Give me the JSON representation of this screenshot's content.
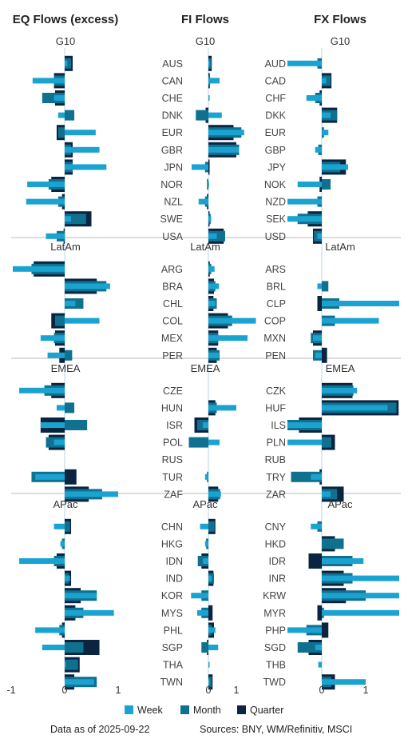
{
  "colors": {
    "week": "#1aa3d1",
    "month": "#10708f",
    "quarter": "#0b2540",
    "divider": "#b9b9b9",
    "axis": "#bcd6e6"
  },
  "legend": {
    "week": "Week",
    "month": "Month",
    "quarter": "Quarter"
  },
  "footer": {
    "date_note": "Data as of 2025-09-22",
    "sources": "Sources:  BNY, WM/Refinitiv, MSCI"
  },
  "chart_data": [
    {
      "type": "bar",
      "title": "EQ Flows (excess)",
      "xlim": [
        -1,
        1
      ],
      "xticks": [
        -1,
        0,
        1
      ],
      "series_names": [
        "Week",
        "Month",
        "Quarter"
      ],
      "groups": [
        {
          "name": "G10",
          "categories": [
            "AUS",
            "CAN",
            "CHE",
            "DNK",
            "EUR",
            "GBR",
            "JPN",
            "NOR",
            "NZL",
            "SWE",
            "USA"
          ],
          "week": [
            0.05,
            -0.6,
            -0.2,
            -0.12,
            0.58,
            0.65,
            0.78,
            -0.7,
            -0.72,
            0.12,
            -0.35
          ],
          "month": [
            0.12,
            -0.2,
            -0.42,
            0.18,
            -0.12,
            0.12,
            0.15,
            -0.3,
            -0.12,
            0.4,
            -0.15
          ],
          "quarter": [
            0.15,
            -0.2,
            -0.18,
            0.0,
            -0.15,
            0.15,
            0.15,
            -0.25,
            -0.05,
            0.5,
            -0.02
          ]
        },
        {
          "name": "LatAm",
          "categories": [
            "ARG",
            "BRA",
            "CHL",
            "COL",
            "MEX",
            "PER"
          ],
          "week": [
            -1.0,
            0.85,
            0.2,
            0.65,
            -0.45,
            -0.32
          ],
          "month": [
            -0.62,
            0.78,
            0.35,
            -0.18,
            -0.2,
            0.14
          ],
          "quarter": [
            -0.58,
            0.6,
            0.0,
            -0.25,
            -0.18,
            -0.1
          ]
        },
        {
          "name": "EMEA",
          "categories": [
            "CZE",
            "HUN",
            "ISR",
            "POL",
            "RUS",
            "TUR",
            "ZAF"
          ],
          "week": [
            -0.85,
            -0.15,
            -0.45,
            -0.2,
            0.0,
            -0.55,
            1.0
          ],
          "month": [
            -0.38,
            0.18,
            0.42,
            -0.35,
            0.0,
            -0.62,
            0.7
          ],
          "quarter": [
            -0.25,
            0.0,
            -0.45,
            -0.3,
            0.0,
            0.22,
            0.45
          ]
        },
        {
          "name": "APac",
          "categories": [
            "CHN",
            "HKG",
            "IDN",
            "IND",
            "KOR",
            "MYS",
            "PHL",
            "SGP",
            "THA",
            "TWN"
          ],
          "week": [
            -0.2,
            -0.08,
            -0.85,
            0.1,
            0.6,
            0.92,
            -0.55,
            -0.42,
            0.02,
            0.55
          ],
          "month": [
            0.1,
            -0.05,
            -0.2,
            0.08,
            0.6,
            0.35,
            -0.1,
            0.35,
            0.25,
            0.6
          ],
          "quarter": [
            0.12,
            0.0,
            -0.15,
            0.12,
            0.3,
            0.2,
            -0.05,
            0.65,
            0.28,
            0.18
          ]
        }
      ]
    },
    {
      "type": "bar",
      "title": "FI Flows",
      "xlim": [
        -1,
        1
      ],
      "xticks": [
        0,
        1
      ],
      "series_names": [
        "Week",
        "Month",
        "Quarter"
      ],
      "groups": [
        {
          "name": "G10",
          "categories": [
            "AUS",
            "CAN",
            "CHE",
            "DNK",
            "EUR",
            "GBR",
            "JPN",
            "NOR",
            "NZL",
            "SWE",
            "USA"
          ],
          "week": [
            0.05,
            0.4,
            0.02,
            0.48,
            1.28,
            1.1,
            -0.6,
            -0.02,
            -0.35,
            0.1,
            0.3
          ],
          "month": [
            0.12,
            0.06,
            0.0,
            -0.45,
            1.18,
            1.1,
            -0.12,
            -0.05,
            -0.12,
            0.08,
            0.6
          ],
          "quarter": [
            0.12,
            0.05,
            0.0,
            -0.1,
            0.9,
            1.0,
            0.02,
            0.0,
            -0.05,
            0.04,
            0.55
          ]
        },
        {
          "name": "LatAm",
          "categories": [
            "ARG",
            "BRA",
            "CHL",
            "COL",
            "MEX",
            "PER"
          ],
          "week": [
            0.22,
            0.38,
            0.25,
            1.7,
            1.4,
            0.38
          ],
          "month": [
            0.1,
            0.25,
            0.3,
            0.85,
            0.35,
            0.4
          ],
          "quarter": [
            0.05,
            0.2,
            0.18,
            0.7,
            0.35,
            0.3
          ]
        },
        {
          "name": "EMEA",
          "categories": [
            "CZE",
            "HUN",
            "ISR",
            "POL",
            "RUS",
            "TUR",
            "ZAF"
          ],
          "week": [
            0.0,
            1.0,
            -0.2,
            0.4,
            0.0,
            -0.12,
            0.45
          ],
          "month": [
            0.0,
            0.3,
            -0.4,
            -0.7,
            0.0,
            -0.05,
            0.42
          ],
          "quarter": [
            0.0,
            0.25,
            -0.5,
            0.0,
            0.0,
            0.0,
            0.35
          ]
        },
        {
          "name": "APac",
          "categories": [
            "CHN",
            "HKG",
            "IDN",
            "IND",
            "KOR",
            "MYS",
            "PHL",
            "SGP",
            "THA",
            "TWN"
          ],
          "week": [
            -0.3,
            -0.12,
            -0.2,
            0.12,
            -0.62,
            -0.4,
            0.25,
            0.35,
            0.04,
            0.05
          ],
          "month": [
            0.22,
            -0.08,
            -0.38,
            0.2,
            -0.25,
            -0.25,
            0.12,
            -0.25,
            0.0,
            0.12
          ],
          "quarter": [
            0.25,
            0.0,
            -0.25,
            0.18,
            0.0,
            0.15,
            0.2,
            -0.05,
            0.0,
            0.15
          ]
        }
      ]
    },
    {
      "type": "bar",
      "title": "FX Flows",
      "xlim": [
        -1,
        1
      ],
      "xticks": [
        0,
        1
      ],
      "series_names": [
        "Week",
        "Month",
        "Quarter"
      ],
      "groups": [
        {
          "name": "G10",
          "categories": [
            "AUD",
            "CAD",
            "CHF",
            "DKK",
            "EUR",
            "GBP",
            "JPY",
            "NOK",
            "NZD",
            "SEK",
            "USD"
          ],
          "week": [
            -1.15,
            0.1,
            -0.35,
            0.2,
            0.15,
            -0.15,
            0.6,
            -0.55,
            -0.82,
            -1.25,
            -0.1
          ],
          "month": [
            -0.1,
            0.2,
            -0.15,
            0.35,
            0.05,
            -0.08,
            0.42,
            0.2,
            -0.1,
            -0.55,
            -0.18
          ],
          "quarter": [
            0.0,
            0.22,
            -0.05,
            0.35,
            0.0,
            0.0,
            0.55,
            -0.05,
            0.0,
            -0.32,
            -0.2
          ]
        },
        {
          "name": "LatAm",
          "categories": [
            "ARS",
            "BRL",
            "CLP",
            "COP",
            "MXN",
            "PEN"
          ],
          "week": [
            0.0,
            -0.1,
            1.8,
            1.3,
            -0.2,
            -0.15
          ],
          "month": [
            0.0,
            0.15,
            0.4,
            0.3,
            -0.25,
            -0.2
          ],
          "quarter": [
            0.0,
            0.0,
            -0.1,
            0.0,
            -0.2,
            0.12
          ]
        },
        {
          "name": "EMEA",
          "categories": [
            "CZK",
            "HUF",
            "ILS",
            "PLN",
            "RUB",
            "TRY",
            "ZAR"
          ],
          "week": [
            0.8,
            1.5,
            -1.22,
            -0.78,
            0.0,
            -0.25,
            0.2
          ],
          "month": [
            0.72,
            1.7,
            -1.0,
            0.22,
            0.0,
            -0.7,
            0.35
          ],
          "quarter": [
            0.7,
            1.75,
            -0.52,
            0.3,
            0.0,
            -0.05,
            0.5
          ]
        },
        {
          "name": "APac",
          "categories": [
            "CNY",
            "HKD",
            "IDR",
            "INR",
            "KRW",
            "MYR",
            "PHP",
            "SGD",
            "THB",
            "TWD"
          ],
          "week": [
            -0.25,
            0.0,
            0.95,
            1.8,
            2.3,
            2.6,
            -1.3,
            -0.15,
            -0.08,
            1.0
          ],
          "month": [
            -0.1,
            0.5,
            0.7,
            0.7,
            1.0,
            0.05,
            -0.35,
            -0.55,
            0.0,
            0.22
          ],
          "quarter": [
            0.0,
            0.3,
            -0.3,
            0.5,
            0.55,
            -0.1,
            0.15,
            -0.3,
            0.0,
            0.3
          ]
        }
      ]
    }
  ]
}
